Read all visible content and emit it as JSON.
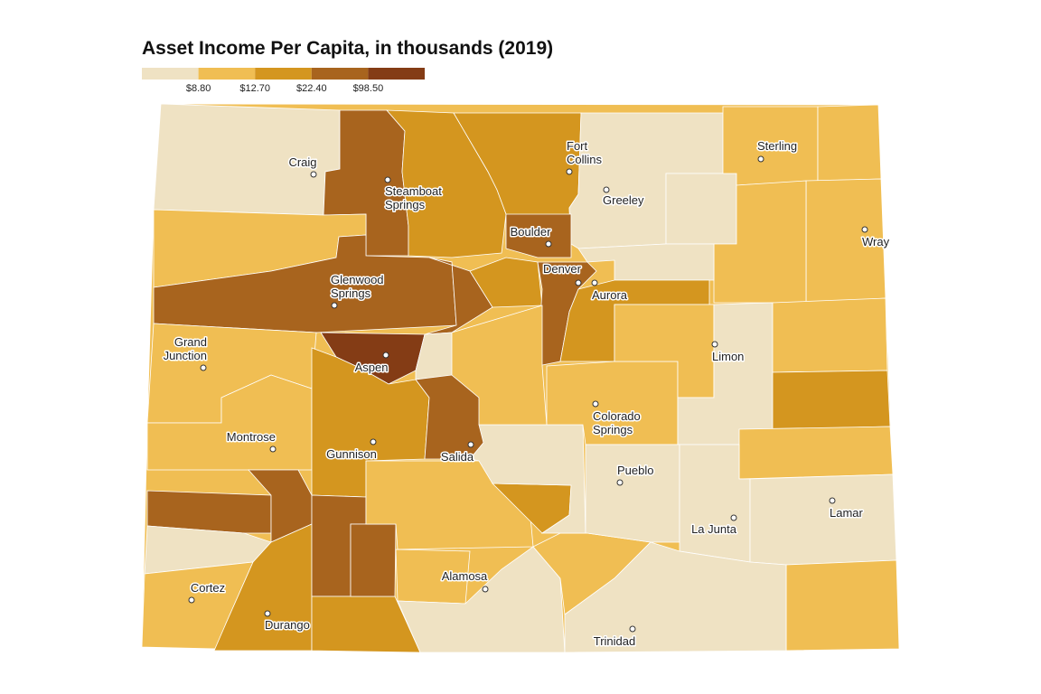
{
  "title": "Asset Income Per Capita, in thousands (2019)",
  "legend": {
    "colors": [
      "#efe2c3",
      "#f0be53",
      "#d4961f",
      "#a8641e",
      "#843c15"
    ],
    "labels": [
      "$8.80",
      "$12.70",
      "$22.40",
      "$98.50"
    ]
  },
  "cities": [
    [
      "Craig"
    ],
    [
      "Steamboat",
      "Springs"
    ],
    [
      "Fort",
      "Collins"
    ],
    [
      "Greeley"
    ],
    [
      "Sterling"
    ],
    [
      "Wray"
    ],
    [
      "Boulder"
    ],
    [
      "Denver"
    ],
    [
      "Aurora"
    ],
    [
      "Glenwood",
      "Springs"
    ],
    [
      "Grand",
      "Junction"
    ],
    [
      "Aspen"
    ],
    [
      "Limon"
    ],
    [
      "Colorado",
      "Springs"
    ],
    [
      "Montrose"
    ],
    [
      "Gunnison"
    ],
    [
      "Salida"
    ],
    [
      "Pueblo"
    ],
    [
      "Lamar"
    ],
    [
      "La Junta"
    ],
    [
      "Alamosa"
    ],
    [
      "Cortez"
    ],
    [
      "Durango"
    ],
    [
      "Trinidad"
    ]
  ]
}
